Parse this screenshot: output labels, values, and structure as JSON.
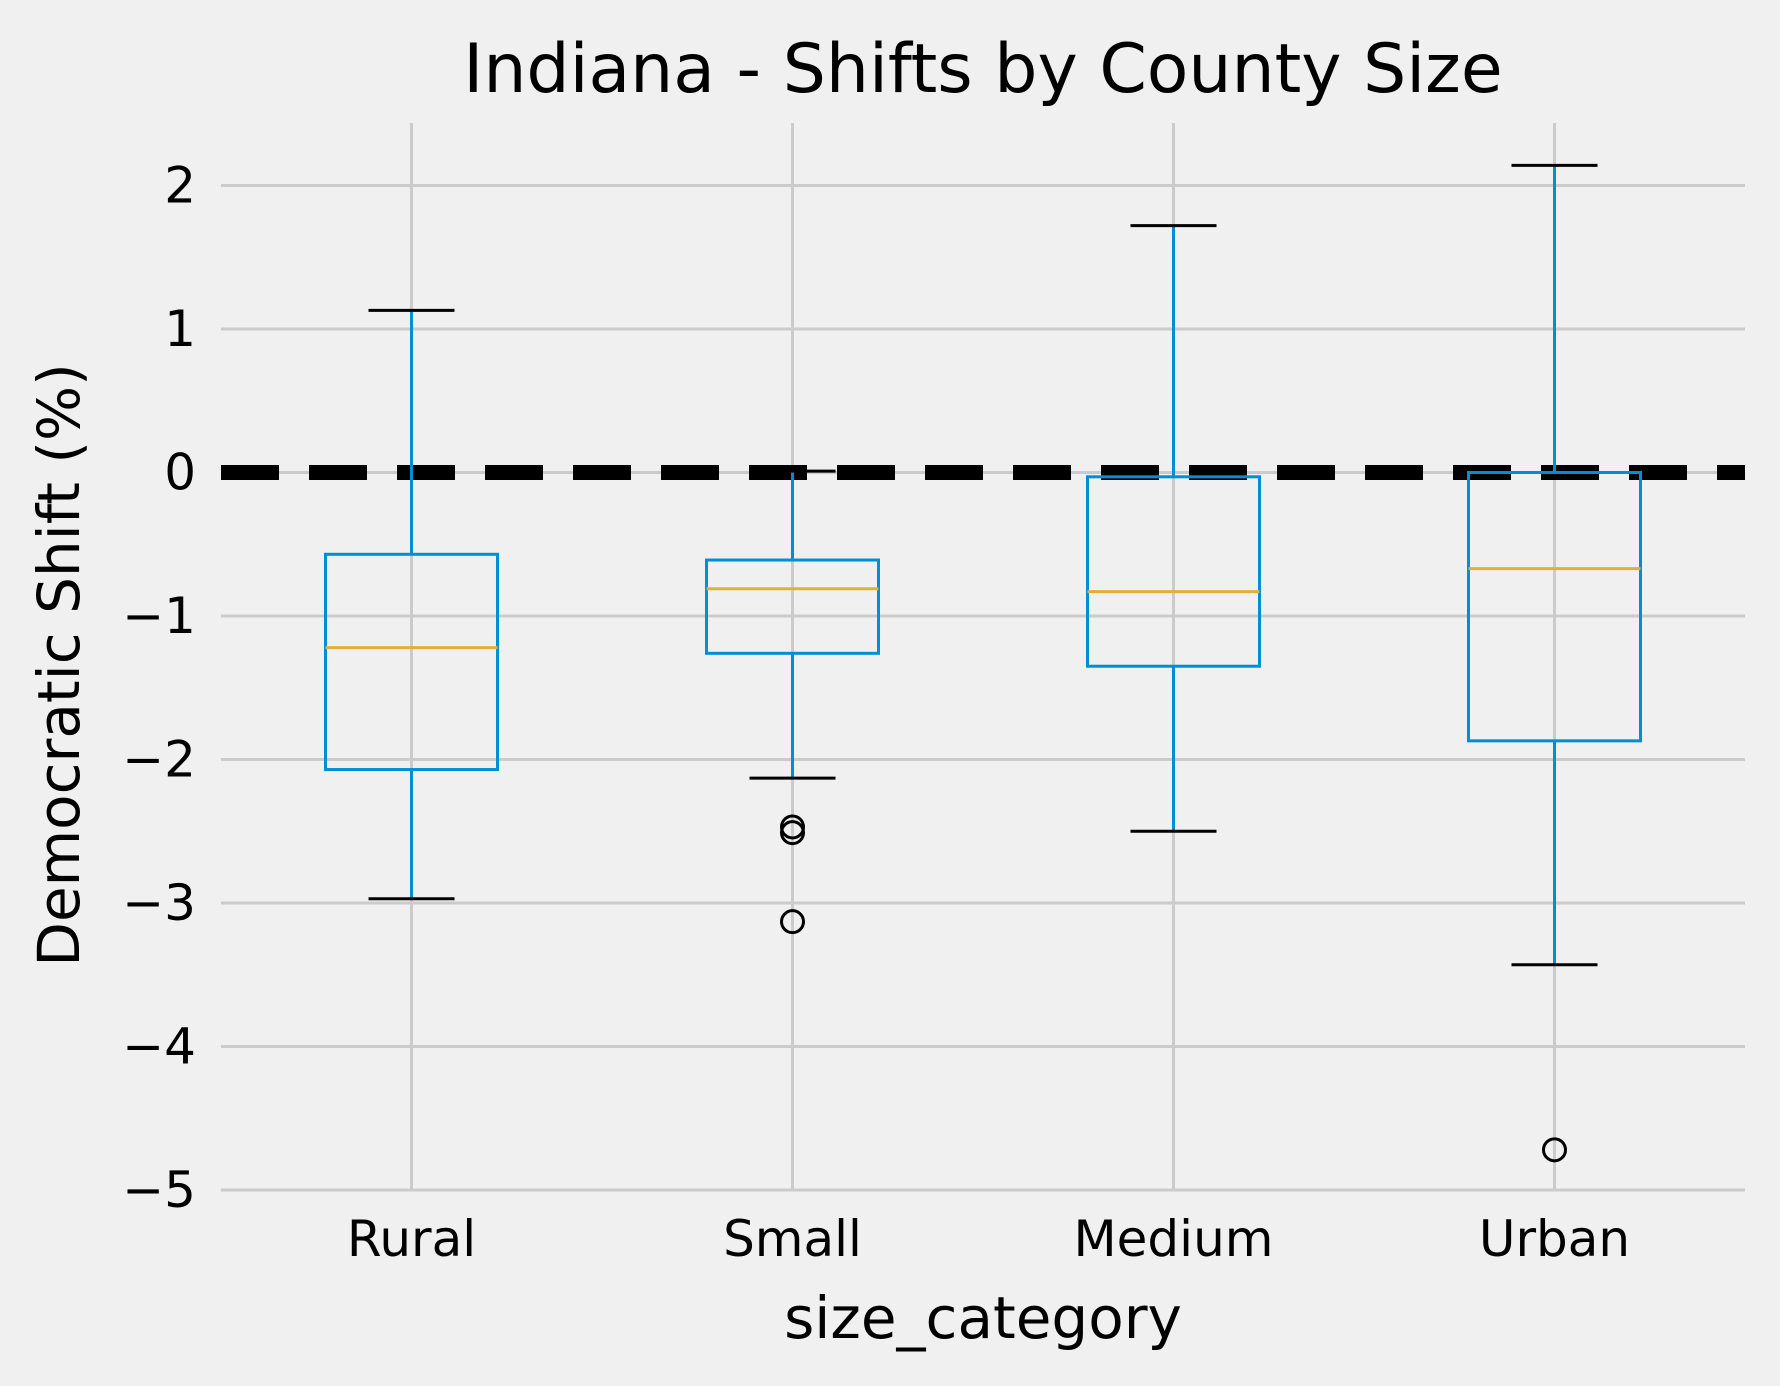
{
  "chart_data": {
    "type": "box",
    "title": "Indiana - Shifts by County Size",
    "xlabel": "size_category",
    "ylabel": "Democratic Shift (%)",
    "ylim": [
      -5.0,
      2.42
    ],
    "yticks": [
      -5,
      -4,
      -3,
      -2,
      -1,
      0,
      1,
      2
    ],
    "ytick_labels": [
      "−5",
      "−4",
      "−3",
      "−2",
      "−1",
      "0",
      "1",
      "2"
    ],
    "grid": true,
    "reference_line": {
      "y": 0,
      "style": "dashed",
      "color": "#000000"
    },
    "colors": {
      "box": "#008fd5",
      "median": "#e5ae38",
      "whisker_cap": "#000000",
      "background": "#f0f0f0",
      "grid": "#cbcbcb"
    },
    "categories": [
      "Rural",
      "Small",
      "Medium",
      "Urban"
    ],
    "boxes": [
      {
        "name": "Rural",
        "whisker_low": -2.97,
        "q1": -2.07,
        "median": -1.22,
        "q3": -0.57,
        "whisker_high": 1.13,
        "outliers": []
      },
      {
        "name": "Small",
        "whisker_low": -2.13,
        "q1": -1.26,
        "median": -0.81,
        "q3": -0.61,
        "whisker_high": 0.01,
        "outliers": [
          -2.47,
          -2.51,
          -3.13
        ]
      },
      {
        "name": "Medium",
        "whisker_low": -2.5,
        "q1": -1.35,
        "median": -0.83,
        "q3": -0.03,
        "whisker_high": 1.72,
        "outliers": []
      },
      {
        "name": "Urban",
        "whisker_low": -3.43,
        "q1": -1.87,
        "median": -0.67,
        "q3": 0.0,
        "whisker_high": 2.14,
        "outliers": [
          -4.72
        ]
      }
    ]
  }
}
